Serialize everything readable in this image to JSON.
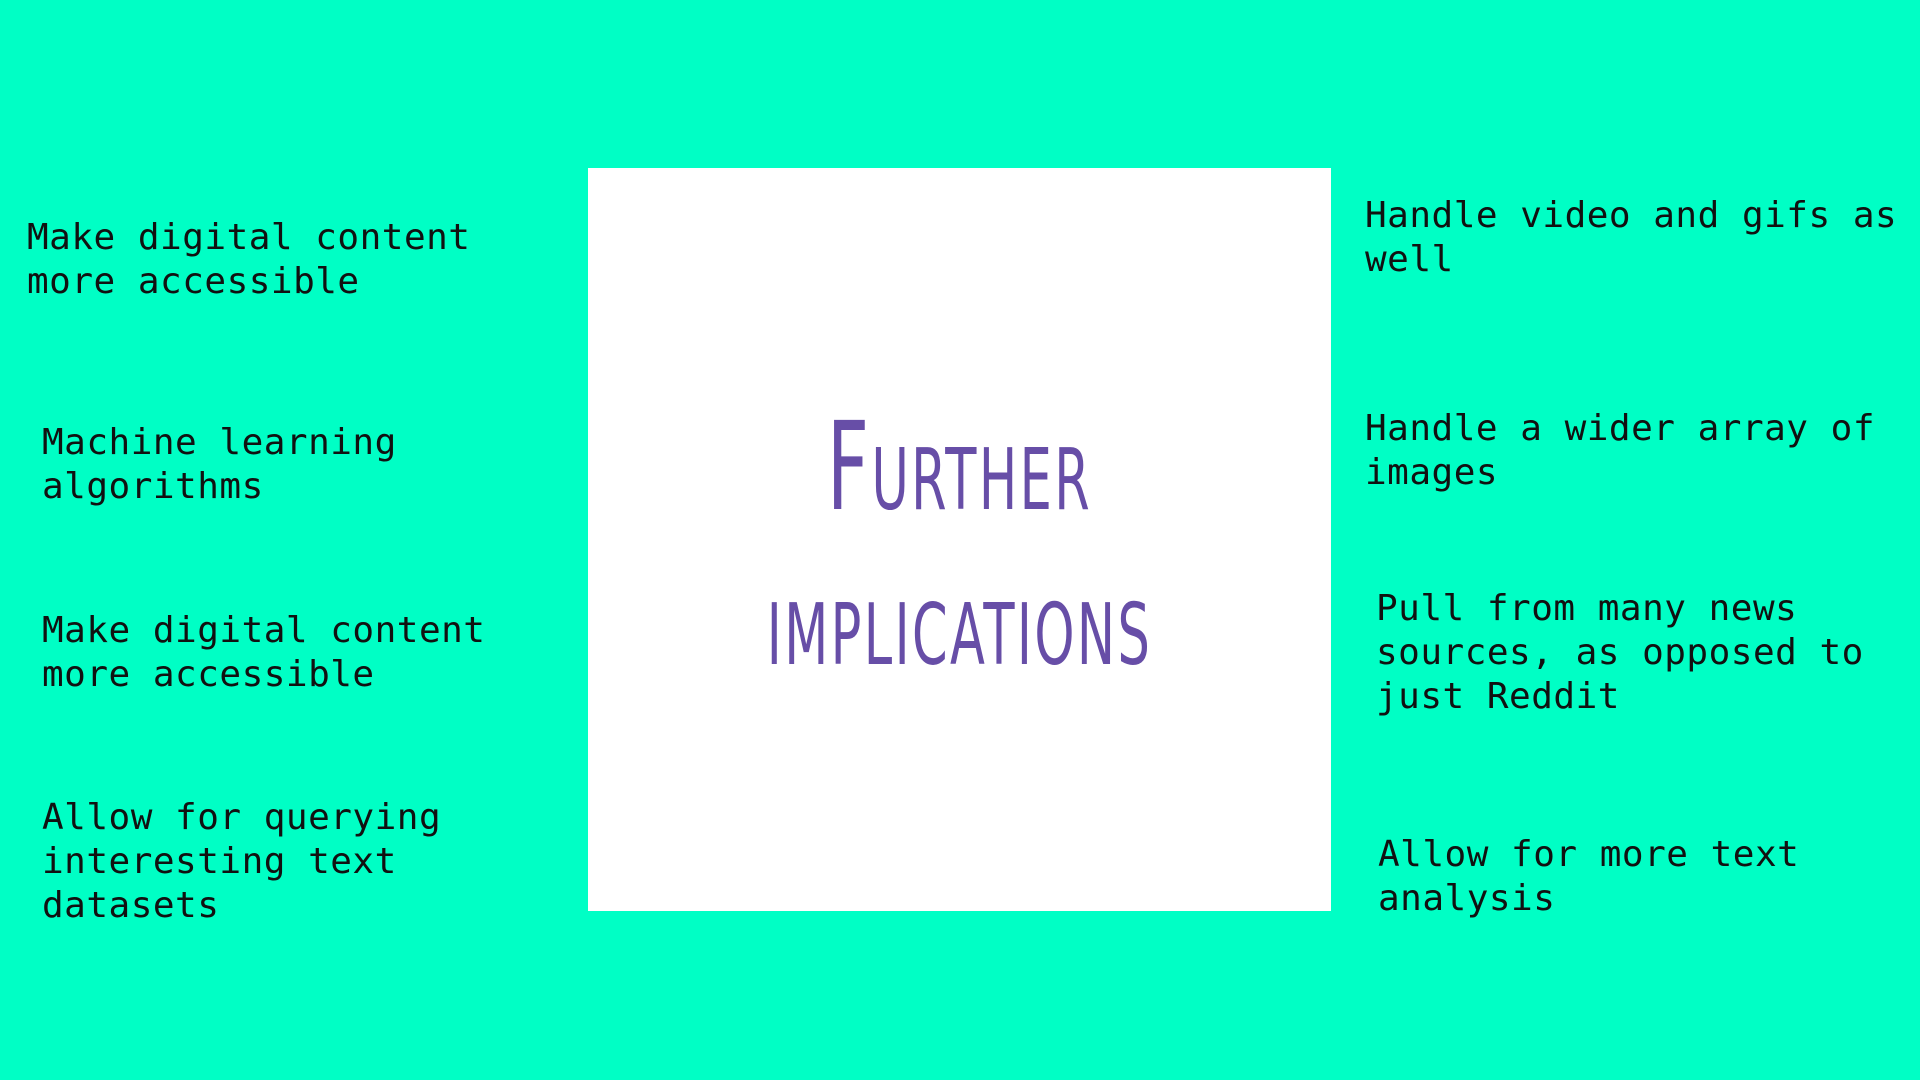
{
  "slide": {
    "background_color": "#00ffc5",
    "card_color": "#ffffff",
    "title_color": "#674ea7",
    "title_line_1": "Further",
    "title_line_2": "implications"
  },
  "left_notes": [
    {
      "text": "Make digital content\nmore accessible"
    },
    {
      "text": "Machine learning\nalgorithms"
    },
    {
      "text": "Make digital content\nmore accessible"
    },
    {
      "text": "Allow for querying\ninteresting text\ndatasets"
    }
  ],
  "right_notes": [
    {
      "text": "Handle video and gifs as\nwell"
    },
    {
      "text": "Handle a wider array of\nimages"
    },
    {
      "text": "Pull from many news\nsources, as opposed to\njust Reddit"
    },
    {
      "text": "Allow for more text\nanalysis"
    }
  ]
}
